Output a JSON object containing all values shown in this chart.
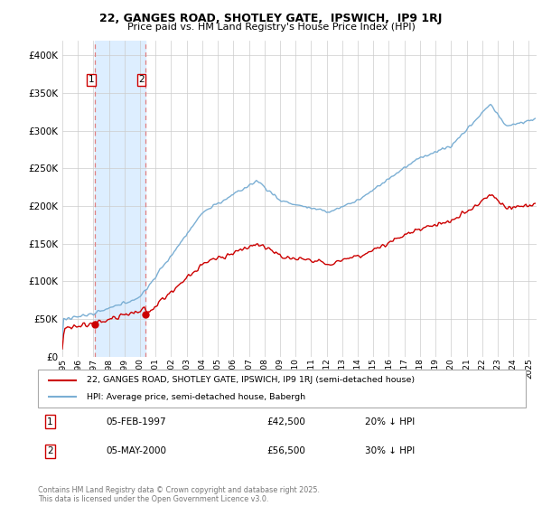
{
  "title1": "22, GANGES ROAD, SHOTLEY GATE,  IPSWICH,  IP9 1RJ",
  "title2": "Price paid vs. HM Land Registry's House Price Index (HPI)",
  "legend_line1": "22, GANGES ROAD, SHOTLEY GATE, IPSWICH, IP9 1RJ (semi-detached house)",
  "legend_line2": "HPI: Average price, semi-detached house, Babergh",
  "transaction1_date": "05-FEB-1997",
  "transaction1_price": "£42,500",
  "transaction1_hpi": "20% ↓ HPI",
  "transaction2_date": "05-MAY-2000",
  "transaction2_price": "£56,500",
  "transaction2_hpi": "30% ↓ HPI",
  "footnote": "Contains HM Land Registry data © Crown copyright and database right 2025.\nThis data is licensed under the Open Government Licence v3.0.",
  "house_color": "#cc0000",
  "hpi_color": "#7bafd4",
  "shade_color": "#ddeeff",
  "vline_color": "#e08080",
  "ylim_max": 420000,
  "ylim_min": 0,
  "t1_year": 1997.083,
  "t2_year": 2000.333,
  "price1": 42500,
  "price2": 56500
}
